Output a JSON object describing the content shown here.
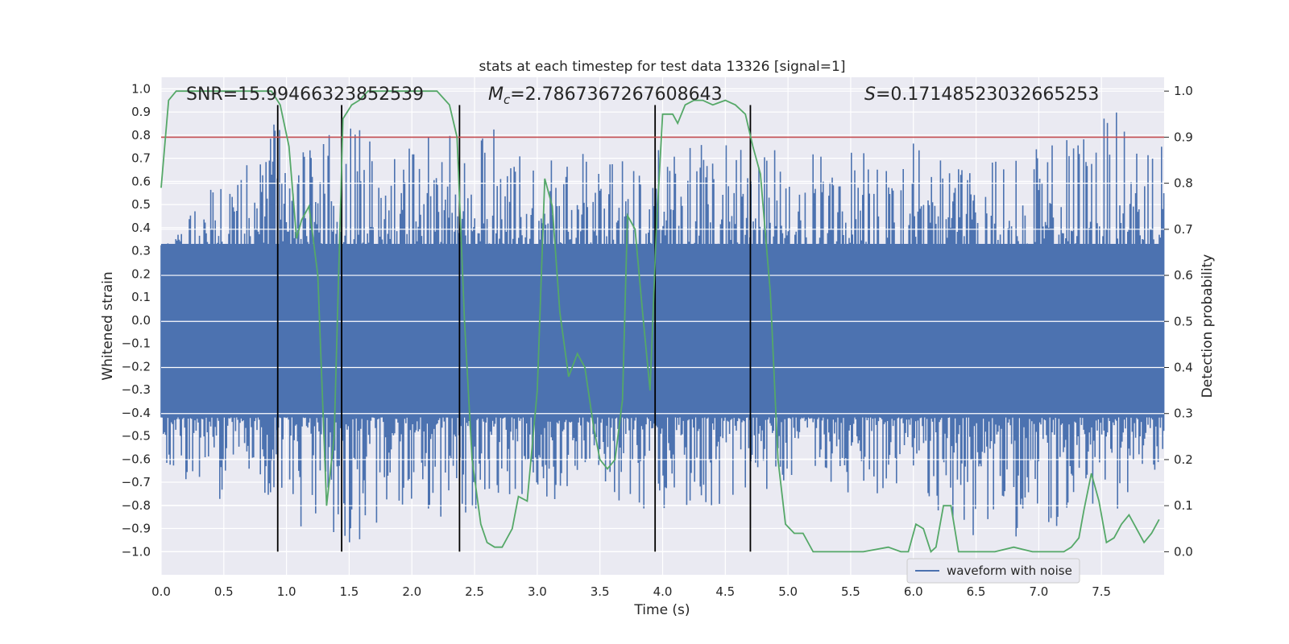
{
  "chart_data": {
    "type": "line",
    "title": "stats at each timestep for test data 13326 [signal=1]",
    "xlabel": "Time (s)",
    "ylabel": "Whitened strain",
    "y2label": "Detection probability",
    "xlim": [
      0,
      8
    ],
    "ylim": [
      -1.1,
      1.05
    ],
    "y2lim": [
      -0.05,
      1.03
    ],
    "xticks": [
      0.0,
      0.5,
      1.0,
      1.5,
      2.0,
      2.5,
      3.0,
      3.5,
      4.0,
      4.5,
      5.0,
      5.5,
      6.0,
      6.5,
      7.0,
      7.5
    ],
    "yticks": [
      1.0,
      0.9,
      0.8,
      0.7,
      0.6,
      0.5,
      0.4,
      0.3,
      0.2,
      0.1,
      0.0,
      -0.1,
      -0.2,
      -0.3,
      -0.4,
      -0.5,
      -0.6,
      -0.7,
      -0.8,
      -0.9,
      -1.0
    ],
    "y2ticks": [
      1.0,
      0.9,
      0.8,
      0.7,
      0.6,
      0.5,
      0.4,
      0.3,
      0.2,
      0.1,
      0.0
    ],
    "grid": true,
    "annotations": {
      "snr": "SNR=15.99466323852539",
      "mc_prefix": "M",
      "mc_sub": "c",
      "mc_value": "=2.7867367267608643",
      "s_prefix": "S",
      "s_value": "=0.17148523032665253"
    },
    "legend": {
      "label": "waveform with noise",
      "position": "lower-center-right"
    },
    "colors": {
      "waveform": "#4c72b0",
      "probability": "#55a868",
      "threshold": "#c44e52",
      "vlines": "#000000",
      "background": "#eaeaf2",
      "grid": "#ffffff"
    },
    "series": [
      {
        "name": "waveform with noise",
        "axis": "left",
        "note": "dense noisy time series, approx. amplitude envelope",
        "envelope": {
          "x": [
            0.0,
            0.5,
            0.93,
            1.0,
            1.5,
            2.0,
            2.5,
            3.0,
            3.5,
            4.0,
            4.5,
            5.0,
            5.5,
            6.0,
            6.5,
            7.0,
            7.5,
            8.0
          ],
          "ymax": [
            0.35,
            0.62,
            0.89,
            0.7,
            0.85,
            0.78,
            0.9,
            0.72,
            0.75,
            0.75,
            0.8,
            0.75,
            0.75,
            0.78,
            0.7,
            0.75,
            0.9,
            0.9
          ],
          "ymin": [
            -0.65,
            -0.79,
            -0.8,
            -0.87,
            -0.97,
            -0.89,
            -0.85,
            -0.78,
            -0.78,
            -0.84,
            -0.8,
            -0.7,
            -0.75,
            -0.75,
            -1.0,
            -0.9,
            -0.92,
            -0.6
          ]
        }
      },
      {
        "name": "detection probability",
        "axis": "right",
        "x": [
          0.0,
          0.06,
          0.12,
          0.2,
          0.3,
          0.4,
          0.5,
          0.6,
          0.7,
          0.8,
          0.88,
          0.95,
          1.02,
          1.08,
          1.12,
          1.18,
          1.25,
          1.32,
          1.38,
          1.45,
          1.52,
          1.58,
          1.65,
          1.72,
          1.8,
          1.9,
          2.0,
          2.1,
          2.2,
          2.3,
          2.36,
          2.42,
          2.48,
          2.55,
          2.6,
          2.66,
          2.72,
          2.8,
          2.85,
          2.92,
          3.0,
          3.06,
          3.12,
          3.18,
          3.25,
          3.32,
          3.38,
          3.45,
          3.5,
          3.56,
          3.62,
          3.68,
          3.72,
          3.78,
          3.84,
          3.9,
          3.95,
          4.0,
          4.08,
          4.12,
          4.18,
          4.25,
          4.32,
          4.4,
          4.5,
          4.58,
          4.66,
          4.72,
          4.78,
          4.86,
          4.92,
          4.98,
          5.05,
          5.12,
          5.2,
          5.4,
          5.6,
          5.8,
          5.9,
          5.96,
          6.02,
          6.08,
          6.14,
          6.18,
          6.24,
          6.3,
          6.36,
          6.42,
          6.5,
          6.65,
          6.8,
          6.95,
          7.1,
          7.2,
          7.26,
          7.32,
          7.36,
          7.42,
          7.48,
          7.54,
          7.6,
          7.66,
          7.72,
          7.78,
          7.84,
          7.9,
          7.96
        ],
        "y": [
          0.79,
          0.98,
          1.0,
          1.0,
          1.0,
          1.0,
          1.0,
          1.0,
          1.0,
          1.0,
          1.0,
          0.97,
          0.88,
          0.68,
          0.72,
          0.75,
          0.6,
          0.1,
          0.25,
          0.94,
          0.97,
          0.98,
          1.0,
          1.0,
          1.0,
          1.0,
          1.0,
          1.0,
          1.0,
          0.97,
          0.9,
          0.5,
          0.2,
          0.06,
          0.02,
          0.01,
          0.01,
          0.05,
          0.12,
          0.11,
          0.35,
          0.81,
          0.75,
          0.52,
          0.38,
          0.43,
          0.4,
          0.27,
          0.2,
          0.18,
          0.2,
          0.33,
          0.73,
          0.7,
          0.52,
          0.35,
          0.7,
          0.95,
          0.95,
          0.93,
          0.97,
          0.98,
          0.98,
          0.97,
          0.98,
          0.97,
          0.95,
          0.88,
          0.82,
          0.56,
          0.2,
          0.06,
          0.04,
          0.04,
          0.0,
          0.0,
          0.0,
          0.01,
          0.0,
          0.0,
          0.06,
          0.05,
          0.0,
          0.01,
          0.1,
          0.1,
          0.0,
          0.0,
          0.0,
          0.0,
          0.01,
          0.0,
          0.0,
          0.0,
          0.01,
          0.03,
          0.09,
          0.17,
          0.11,
          0.02,
          0.03,
          0.06,
          0.08,
          0.05,
          0.02,
          0.04,
          0.07
        ]
      },
      {
        "name": "threshold",
        "axis": "right",
        "type": "hline",
        "y": 0.9
      },
      {
        "name": "markers",
        "type": "vlines",
        "x": [
          0.93,
          1.44,
          2.38,
          3.94,
          4.7
        ],
        "ylim_left": [
          -1.0,
          0.93
        ]
      }
    ]
  }
}
